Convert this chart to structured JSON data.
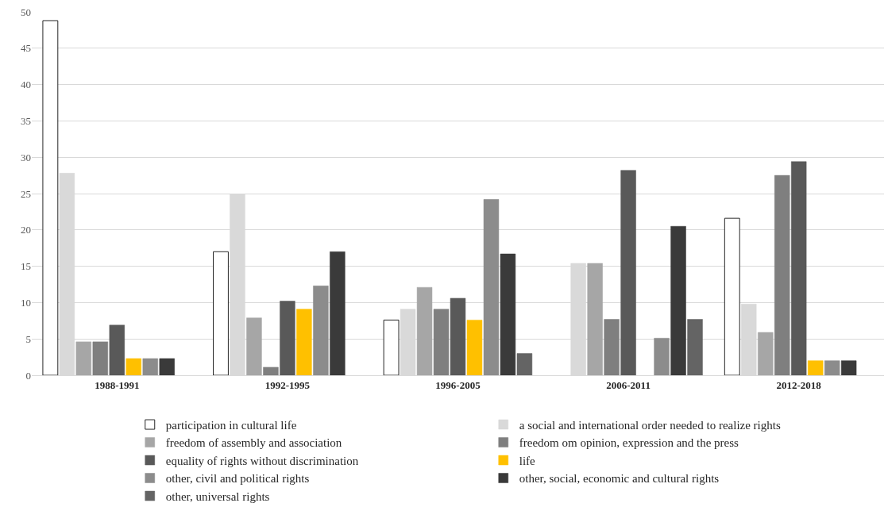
{
  "chart_data": {
    "type": "bar",
    "categories": [
      "1988-1991",
      "1992-1995",
      "1996-2005",
      "2006-2011",
      "2012-2018"
    ],
    "series": [
      {
        "name": "participation in cultural life",
        "color": "#ffffff",
        "values": [
          48.8,
          17.0,
          7.6,
          null,
          21.6
        ]
      },
      {
        "name": "a social and international order needed to realize rights",
        "color": "#d9d9d9",
        "values": [
          27.8,
          24.9,
          9.1,
          15.4,
          9.8
        ]
      },
      {
        "name": "freedom of assembly and association",
        "color": "#a6a6a6",
        "values": [
          4.6,
          7.9,
          12.1,
          15.4,
          5.9
        ]
      },
      {
        "name": "freedom om opinion, expression and the press",
        "color": "#7f7f7f",
        "values": [
          4.6,
          1.1,
          9.1,
          7.7,
          27.5
        ]
      },
      {
        "name": "equality of rights without discrimination",
        "color": "#595959",
        "values": [
          6.9,
          10.2,
          10.6,
          28.2,
          29.4
        ]
      },
      {
        "name": "life",
        "color": "#ffc000",
        "values": [
          2.3,
          9.1,
          7.6,
          null,
          2.0
        ]
      },
      {
        "name": "other, civil and political rights",
        "color": "#8c8c8c",
        "values": [
          2.3,
          12.3,
          24.2,
          5.1,
          2.0
        ]
      },
      {
        "name": "other, social, economic and cultural rights",
        "color": "#3a3a3a",
        "values": [
          2.3,
          17.0,
          16.7,
          20.5,
          2.0
        ]
      },
      {
        "name": "other, universal rights",
        "color": "#646464",
        "values": [
          null,
          null,
          3.0,
          7.7,
          null
        ]
      }
    ],
    "ylim": [
      0,
      50
    ],
    "yticks": [
      0,
      5,
      10,
      15,
      20,
      25,
      30,
      35,
      40,
      45,
      50
    ],
    "grid": "y",
    "legend": "bottom"
  }
}
